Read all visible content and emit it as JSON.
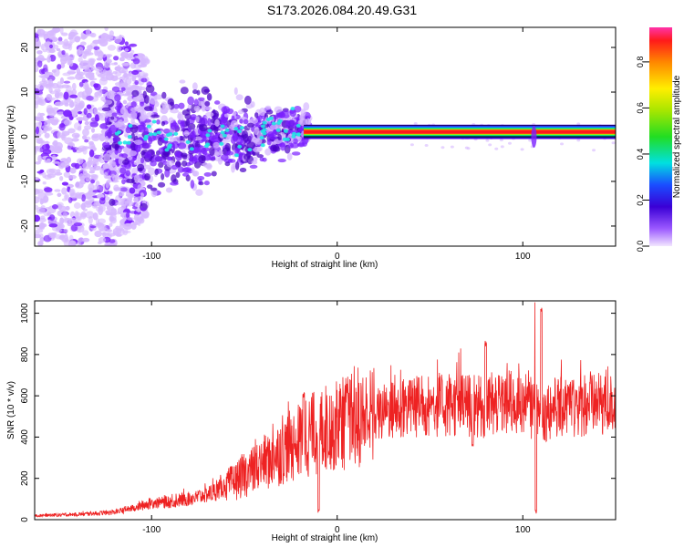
{
  "title": "S173.2026.084.20.49.G31",
  "colors": {
    "snr_line": "#ee2222",
    "axis": "#000000",
    "scatter_weak": "#d6b8ff",
    "scatter_mid": "#7b1fff",
    "scatter_strong": "#4a00c8"
  },
  "chart_data": [
    {
      "type": "heatmap",
      "title": "",
      "xlabel": "Height of straight line (km)",
      "ylabel": "Frequency (Hz)",
      "xlim": [
        -163,
        150
      ],
      "ylim": [
        -24.5,
        24.5
      ],
      "xticks": [
        -100,
        0,
        100
      ],
      "xtick_labels": [
        "-100",
        "0",
        "100"
      ],
      "yticks": [
        -20,
        -10,
        0,
        10,
        20
      ],
      "ytick_labels": [
        "-20",
        "-10",
        "0",
        "10",
        "20"
      ],
      "colorbar": {
        "label": "Normalized spectral amplitude",
        "range": [
          0,
          0.95
        ],
        "ticks": [
          0.0,
          0.2,
          0.4,
          0.6,
          0.8
        ],
        "tick_labels": [
          "0.0",
          "0.2",
          "0.4",
          "0.6",
          "0.8"
        ],
        "colormap": "rainbow (purple low → red high)"
      },
      "dominant_frequency_hz": 0.8,
      "features": [
        {
          "x_range": [
            -163,
            -125
          ],
          "description": "broadband scattered weak energy spanning full frequency range"
        },
        {
          "x_range": [
            -120,
            -20
          ],
          "description": "moderate energy cluster narrowing toward 0-5 Hz"
        },
        {
          "x_range": [
            -18,
            150
          ],
          "description": "strong narrowband signal near 0.8 Hz"
        }
      ]
    },
    {
      "type": "line",
      "title": "",
      "xlabel": "Height of straight line (km)",
      "ylabel": "SNR (10 * v/v)",
      "xlim": [
        -163,
        150
      ],
      "ylim": [
        0,
        1060
      ],
      "xticks": [
        -100,
        0,
        100
      ],
      "xtick_labels": [
        "-100",
        "0",
        "100"
      ],
      "yticks": [
        0,
        200,
        400,
        600,
        800,
        1000
      ],
      "ytick_labels": [
        "0",
        "200",
        "400",
        "600",
        "800",
        "1000"
      ],
      "series": [
        {
          "name": "SNR",
          "x": [
            -163,
            -150,
            -140,
            -130,
            -120,
            -110,
            -100,
            -90,
            -80,
            -70,
            -60,
            -50,
            -40,
            -30,
            -20,
            -10,
            0,
            10,
            20,
            30,
            40,
            50,
            60,
            70,
            80,
            90,
            100,
            105,
            110,
            115,
            120,
            130,
            140,
            150
          ],
          "y": [
            20,
            22,
            25,
            30,
            35,
            55,
            80,
            85,
            100,
            120,
            160,
            210,
            270,
            330,
            380,
            430,
            460,
            480,
            500,
            530,
            545,
            550,
            550,
            555,
            540,
            550,
            560,
            540,
            500,
            540,
            545,
            550,
            555,
            555
          ],
          "spikes": [
            {
              "x": -18,
              "y": 620
            },
            {
              "x": 80,
              "y": 870
            },
            {
              "x": 107,
              "y": 1055
            },
            {
              "x": 110,
              "y": 1030
            }
          ],
          "dips": [
            {
              "x": -10,
              "y": 30
            },
            {
              "x": 107,
              "y": 30
            },
            {
              "x": 73,
              "y": 345
            }
          ]
        }
      ]
    }
  ]
}
